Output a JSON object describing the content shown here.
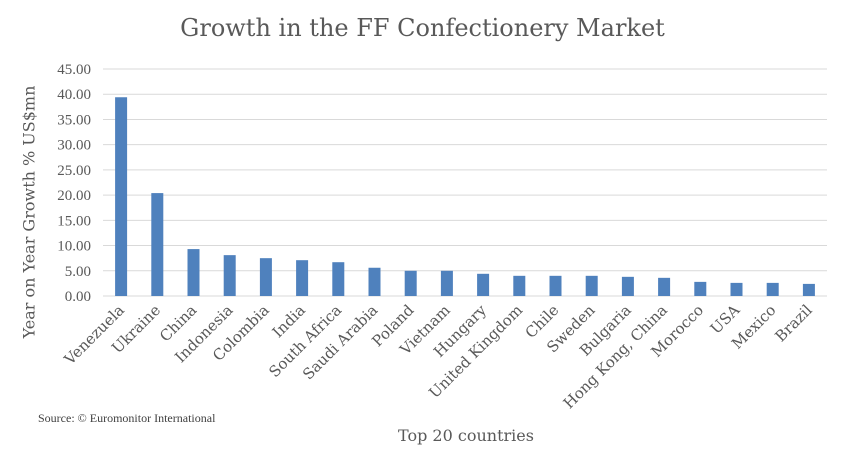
{
  "chart_data": {
    "type": "bar",
    "title": "Growth in the FF Confectionery Market",
    "xlabel": "Top 20 countries",
    "ylabel": "Year on Year Growth % US$mn",
    "source": "Source: © Euromonitor International",
    "ylim": [
      0,
      45
    ],
    "yticks": [
      "0.00",
      "5.00",
      "10.00",
      "15.00",
      "20.00",
      "25.00",
      "30.00",
      "35.00",
      "40.00",
      "45.00"
    ],
    "grid": true,
    "bar_color": "#4f81bd",
    "categories": [
      "Venezuela",
      "Ukraine",
      "China",
      "Indonesia",
      "Colombia",
      "India",
      "South Africa",
      "Saudi Arabia",
      "Poland",
      "Vietnam",
      "Hungary",
      "United Kingdom",
      "Chile",
      "Sweden",
      "Bulgaria",
      "Hong Kong, China",
      "Morocco",
      "USA",
      "Mexico",
      "Brazil"
    ],
    "values": [
      39.4,
      20.4,
      9.3,
      8.1,
      7.5,
      7.1,
      6.7,
      5.6,
      5.0,
      5.0,
      4.4,
      4.0,
      4.0,
      4.0,
      3.8,
      3.6,
      2.8,
      2.6,
      2.6,
      2.4
    ]
  }
}
